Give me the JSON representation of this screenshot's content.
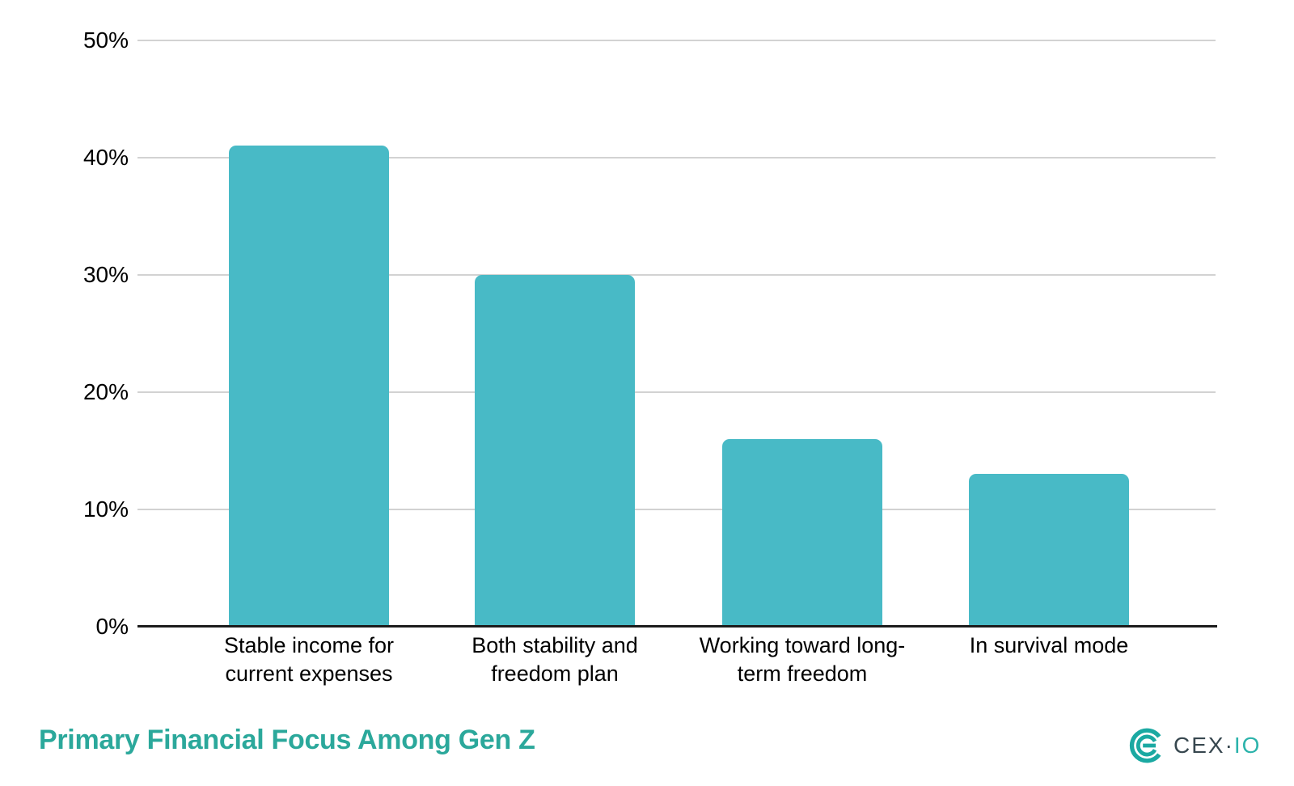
{
  "chart_data": {
    "type": "bar",
    "categories": [
      "Stable income for\ncurrent expenses",
      "Both stability and\nfreedom plan",
      "Working toward long-\nterm freedom",
      "In survival mode"
    ],
    "values": [
      41,
      30,
      16,
      13
    ],
    "title": "Primary Financial Focus Among Gen Z",
    "xlabel": "",
    "ylabel": "",
    "ylim": [
      0,
      50
    ],
    "yticks": [
      0,
      10,
      20,
      30,
      40,
      50
    ],
    "ytick_suffix": "%",
    "grid": true,
    "legend": false,
    "bar_color": "#48BAC6"
  },
  "footer": {
    "title": "Primary Financial Focus Among Gen Z",
    "brand_text_dark": "CEX·",
    "brand_text_teal": "IO"
  },
  "colors": {
    "bar": "#48BAC6",
    "title": "#2BA89B",
    "logo_mark": "#1BA9A2",
    "brand_dark": "#37474F",
    "brand_teal": "#2CB3AB",
    "gridline": "#D2D2D2",
    "axis": "#1C1C1C"
  }
}
